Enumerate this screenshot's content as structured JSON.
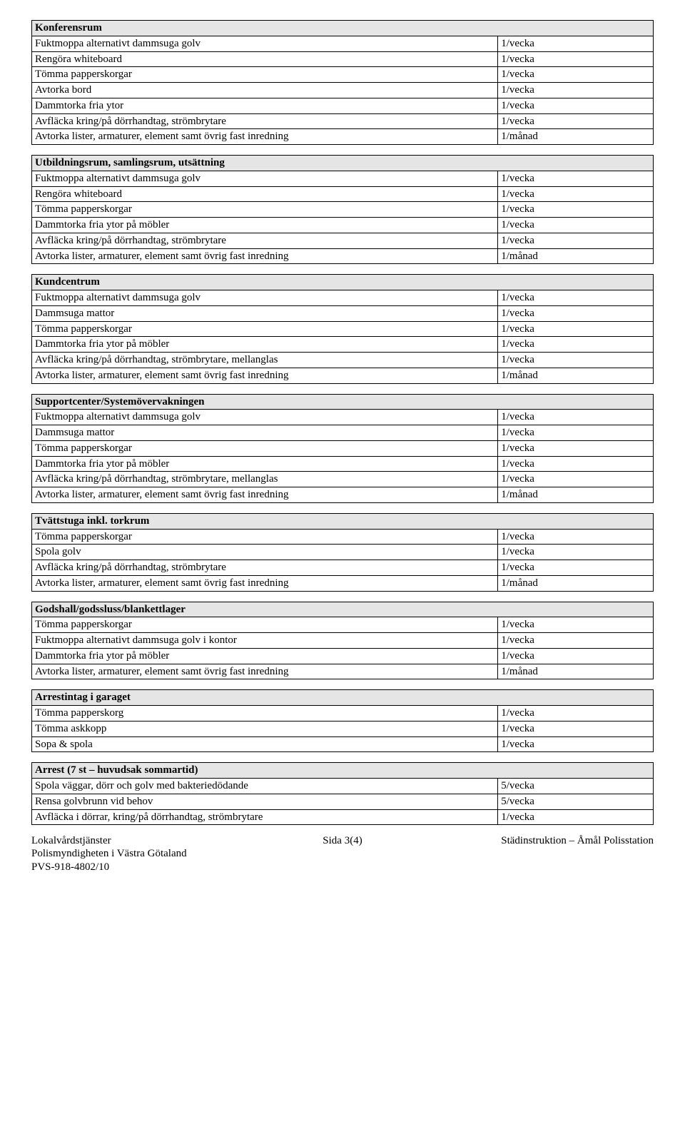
{
  "sections": [
    {
      "header": "Konferensrum",
      "rows": [
        [
          "Fuktmoppa alternativt dammsuga golv",
          "1/vecka"
        ],
        [
          "Rengöra whiteboard",
          "1/vecka"
        ],
        [
          "Tömma papperskorgar",
          "1/vecka"
        ],
        [
          "Avtorka bord",
          "1/vecka"
        ],
        [
          "Dammtorka fria ytor",
          "1/vecka"
        ],
        [
          "Avfläcka kring/på dörrhandtag, strömbrytare",
          "1/vecka"
        ],
        [
          "Avtorka lister, armaturer, element samt övrig fast inredning",
          "1/månad"
        ]
      ]
    },
    {
      "header": "Utbildningsrum, samlingsrum, utsättning",
      "rows": [
        [
          "Fuktmoppa alternativt dammsuga golv",
          "1/vecka"
        ],
        [
          "Rengöra whiteboard",
          "1/vecka"
        ],
        [
          "Tömma papperskorgar",
          "1/vecka"
        ],
        [
          "Dammtorka fria ytor på möbler",
          "1/vecka"
        ],
        [
          "Avfläcka kring/på dörrhandtag, strömbrytare",
          "1/vecka"
        ],
        [
          "Avtorka lister, armaturer, element samt övrig fast inredning",
          "1/månad"
        ]
      ]
    },
    {
      "header": "Kundcentrum",
      "rows": [
        [
          "Fuktmoppa alternativt dammsuga golv",
          "1/vecka"
        ],
        [
          "Dammsuga mattor",
          "1/vecka"
        ],
        [
          "Tömma papperskorgar",
          "1/vecka"
        ],
        [
          "Dammtorka fria ytor på möbler",
          "1/vecka"
        ],
        [
          "Avfläcka kring/på dörrhandtag, strömbrytare, mellanglas",
          "1/vecka"
        ],
        [
          "Avtorka lister, armaturer, element samt övrig fast inredning",
          "1/månad"
        ]
      ]
    },
    {
      "header": "Supportcenter/Systemövervakningen",
      "rows": [
        [
          "Fuktmoppa alternativt dammsuga golv",
          "1/vecka"
        ],
        [
          "Dammsuga mattor",
          "1/vecka"
        ],
        [
          "Tömma papperskorgar",
          "1/vecka"
        ],
        [
          "Dammtorka fria ytor på möbler",
          "1/vecka"
        ],
        [
          "Avfläcka kring/på dörrhandtag, strömbrytare, mellanglas",
          "1/vecka"
        ],
        [
          "Avtorka lister, armaturer, element samt övrig fast inredning",
          "1/månad"
        ]
      ]
    },
    {
      "header": "Tvättstuga inkl. torkrum",
      "rows": [
        [
          "Tömma papperskorgar",
          "1/vecka"
        ],
        [
          "Spola golv",
          "1/vecka"
        ],
        [
          "Avfläcka kring/på dörrhandtag, strömbrytare",
          "1/vecka"
        ],
        [
          "Avtorka lister, armaturer, element samt övrig fast inredning",
          "1/månad"
        ]
      ]
    },
    {
      "header": "Godshall/godssluss/blankettlager",
      "rows": [
        [
          "Tömma papperskorgar",
          "1/vecka"
        ],
        [
          "Fuktmoppa alternativt dammsuga golv i kontor",
          "1/vecka"
        ],
        [
          "Dammtorka fria ytor på möbler",
          "1/vecka"
        ],
        [
          "Avtorka lister, armaturer, element samt övrig fast inredning",
          "1/månad"
        ]
      ]
    },
    {
      "header": "Arrestintag i garaget",
      "rows": [
        [
          "Tömma papperskorg",
          "1/vecka"
        ],
        [
          "Tömma askkopp",
          "1/vecka"
        ],
        [
          "Sopa & spola",
          "1/vecka"
        ]
      ]
    },
    {
      "header": "Arrest (7 st – huvudsak sommartid)",
      "rows": [
        [
          "Spola väggar, dörr och golv med bakteriedödande",
          "5/vecka"
        ],
        [
          "Rensa golvbrunn vid behov",
          "5/vecka"
        ],
        [
          "Avfläcka i dörrar, kring/på dörrhandtag, strömbrytare",
          "1/vecka"
        ]
      ]
    }
  ],
  "footer": {
    "left1": "Lokalvårdstjänster",
    "mid1": "Sida 3(4)",
    "right1": "Städinstruktion – Åmål Polisstation",
    "line2": "Polismyndigheten i Västra Götaland",
    "line3": "PVS-918-4802/10"
  },
  "style": {
    "header_bg": "#e5e5e5",
    "border_color": "#000000",
    "text_color": "#000000",
    "background_color": "#ffffff",
    "font_family": "Times New Roman",
    "font_size_pt": 12,
    "col_left_width_pct": 75,
    "col_right_width_pct": 25
  }
}
